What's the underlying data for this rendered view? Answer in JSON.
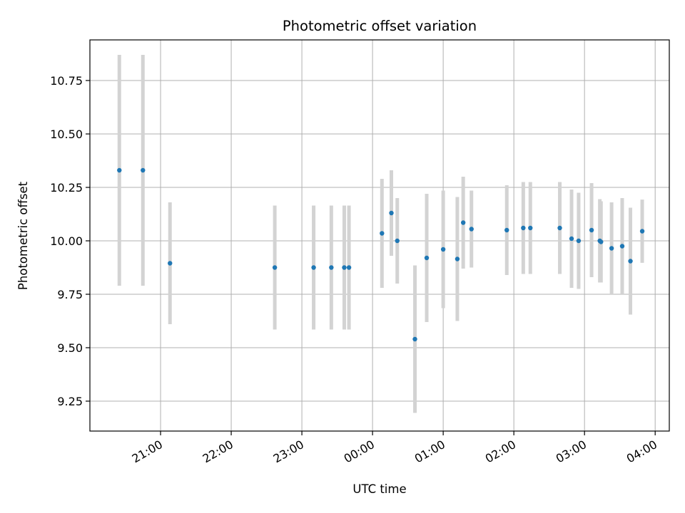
{
  "chart_data": {
    "type": "scatter",
    "title": "Photometric offset variation",
    "xlabel": "UTC time",
    "ylabel": "Photometric offset",
    "grid": true,
    "legend": "none",
    "x_ticks": [
      "21:00",
      "22:00",
      "23:00",
      "00:00",
      "01:00",
      "02:00",
      "03:00",
      "04:00"
    ],
    "xlim": [
      "20:00",
      "04:12"
    ],
    "y_ticks": [
      "9.25",
      "9.50",
      "9.75",
      "10.00",
      "10.25",
      "10.50",
      "10.75"
    ],
    "ylim": [
      9.11,
      10.94
    ],
    "colors": {
      "point": "#1f77b4",
      "errorbar": "#d3d3d3",
      "grid": "#b0b0b0"
    },
    "series": [
      {
        "points": [
          {
            "x": "20:25",
            "y": 10.33,
            "err": 0.54
          },
          {
            "x": "20:45",
            "y": 10.33,
            "err": 0.54
          },
          {
            "x": "21:08",
            "y": 9.895,
            "err": 0.285
          },
          {
            "x": "22:37",
            "y": 9.875,
            "err": 0.29
          },
          {
            "x": "23:10",
            "y": 9.875,
            "err": 0.29
          },
          {
            "x": "23:25",
            "y": 9.875,
            "err": 0.29
          },
          {
            "x": "23:36",
            "y": 9.875,
            "err": 0.29
          },
          {
            "x": "23:40",
            "y": 9.875,
            "err": 0.29
          },
          {
            "x": "00:08",
            "y": 10.035,
            "err": 0.255
          },
          {
            "x": "00:16",
            "y": 10.13,
            "err": 0.2
          },
          {
            "x": "00:21",
            "y": 10.0,
            "err": 0.2
          },
          {
            "x": "00:36",
            "y": 9.54,
            "err": 0.345
          },
          {
            "x": "00:46",
            "y": 9.92,
            "err": 0.3
          },
          {
            "x": "01:00",
            "y": 9.96,
            "err": 0.275
          },
          {
            "x": "01:12",
            "y": 9.915,
            "err": 0.29
          },
          {
            "x": "01:17",
            "y": 10.085,
            "err": 0.215
          },
          {
            "x": "01:24",
            "y": 10.055,
            "err": 0.18
          },
          {
            "x": "01:54",
            "y": 10.05,
            "err": 0.21
          },
          {
            "x": "02:08",
            "y": 10.06,
            "err": 0.215
          },
          {
            "x": "02:14",
            "y": 10.06,
            "err": 0.215
          },
          {
            "x": "02:39",
            "y": 10.06,
            "err": 0.215
          },
          {
            "x": "02:49",
            "y": 10.01,
            "err": 0.23
          },
          {
            "x": "02:55",
            "y": 10.0,
            "err": 0.225
          },
          {
            "x": "03:06",
            "y": 10.05,
            "err": 0.22
          },
          {
            "x": "03:13",
            "y": 10.0,
            "err": 0.195
          },
          {
            "x": "03:14",
            "y": 9.995,
            "err": 0.19
          },
          {
            "x": "03:23",
            "y": 9.965,
            "err": 0.215
          },
          {
            "x": "03:32",
            "y": 9.975,
            "err": 0.225
          },
          {
            "x": "03:39",
            "y": 9.905,
            "err": 0.25
          },
          {
            "x": "03:49",
            "y": 10.045,
            "err": 0.148
          }
        ]
      }
    ]
  }
}
